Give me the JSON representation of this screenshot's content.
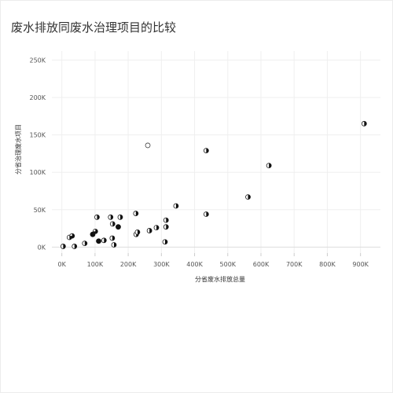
{
  "chart_data": {
    "type": "scatter",
    "title": "废水排放同废水治理项目的比较",
    "xlabel": "分省废水排放总量",
    "ylabel": "分省治理废水项目",
    "xlim": [
      -30000,
      960000
    ],
    "ylim": [
      -8000,
      262000
    ],
    "x_ticks": [
      0,
      100000,
      200000,
      300000,
      400000,
      500000,
      600000,
      700000,
      800000,
      900000
    ],
    "x_tick_labels": [
      "0K",
      "100K",
      "200K",
      "300K",
      "400K",
      "500K",
      "600K",
      "700K",
      "800K",
      "900K"
    ],
    "y_ticks": [
      0,
      50000,
      100000,
      150000,
      200000,
      250000
    ],
    "y_tick_labels": [
      "0K",
      "50K",
      "100K",
      "150K",
      "200K",
      "250K"
    ],
    "grid": true,
    "marker_styles": [
      "quarter",
      "half",
      "three-quarter",
      "full",
      "empty"
    ],
    "points": [
      {
        "x": 4000,
        "y": 1000,
        "m": "half"
      },
      {
        "x": 23000,
        "y": 13000,
        "m": "half"
      },
      {
        "x": 31000,
        "y": 15000,
        "m": "three-quarter"
      },
      {
        "x": 38000,
        "y": 1000,
        "m": "half"
      },
      {
        "x": 69000,
        "y": 5000,
        "m": "half"
      },
      {
        "x": 93000,
        "y": 17000,
        "m": "full"
      },
      {
        "x": 101000,
        "y": 21000,
        "m": "three-quarter"
      },
      {
        "x": 106000,
        "y": 40000,
        "m": "half"
      },
      {
        "x": 111000,
        "y": 8000,
        "m": "full"
      },
      {
        "x": 127000,
        "y": 9000,
        "m": "half"
      },
      {
        "x": 147000,
        "y": 40000,
        "m": "half"
      },
      {
        "x": 152000,
        "y": 12000,
        "m": "half"
      },
      {
        "x": 153000,
        "y": 31000,
        "m": "half"
      },
      {
        "x": 157000,
        "y": 3000,
        "m": "half"
      },
      {
        "x": 170000,
        "y": 27000,
        "m": "full"
      },
      {
        "x": 176000,
        "y": 40000,
        "m": "half"
      },
      {
        "x": 223000,
        "y": 45000,
        "m": "half"
      },
      {
        "x": 224000,
        "y": 17000,
        "m": "half"
      },
      {
        "x": 228000,
        "y": 20000,
        "m": "half"
      },
      {
        "x": 259000,
        "y": 136000,
        "m": "empty"
      },
      {
        "x": 264000,
        "y": 22000,
        "m": "half"
      },
      {
        "x": 285000,
        "y": 26000,
        "m": "half"
      },
      {
        "x": 311000,
        "y": 7000,
        "m": "half"
      },
      {
        "x": 314000,
        "y": 36000,
        "m": "half"
      },
      {
        "x": 314000,
        "y": 27000,
        "m": "half"
      },
      {
        "x": 344000,
        "y": 55000,
        "m": "half"
      },
      {
        "x": 435000,
        "y": 129000,
        "m": "half"
      },
      {
        "x": 435000,
        "y": 44000,
        "m": "half"
      },
      {
        "x": 561000,
        "y": 67000,
        "m": "half"
      },
      {
        "x": 624000,
        "y": 109000,
        "m": "half"
      },
      {
        "x": 911000,
        "y": 165000,
        "m": "half"
      }
    ]
  }
}
